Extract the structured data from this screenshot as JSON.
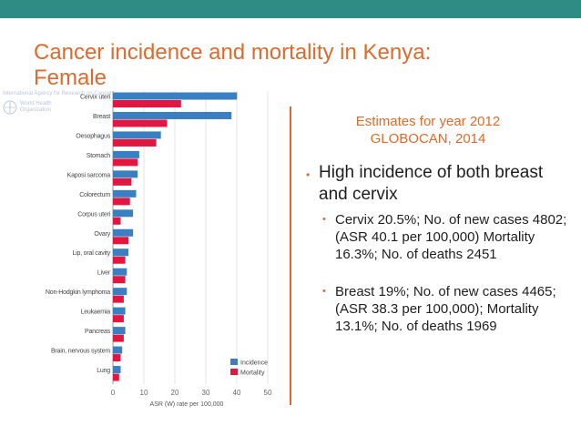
{
  "slide": {
    "title": "Cancer incidence and mortality in Kenya: Female",
    "estimates_line1": "Estimates for year 2012",
    "estimates_line2": "GLOBOCAN, 2014",
    "bullet_main": "High incidence of both breast and cervix",
    "bullet_cervix": "Cervix  20.5%; No. of new cases 4802; (ASR 40.1 per 100,000) Mortality 16.3%; No. of deaths 2451",
    "bullet_breast": "Breast 19%; No. of new cases 4465; (ASR 38.3 per 100,000); Mortality 13.1%; No. of deaths 1969"
  },
  "who_logo": {
    "line1": "International Agency for Research on Cancer",
    "line2": "World Health",
    "line3": "Organization"
  },
  "colors": {
    "topbar": "#2e8c84",
    "title": "#e06a2b",
    "incidence": "#3a7fc1",
    "mortality": "#e2163f"
  },
  "chart_data": {
    "type": "bar",
    "orientation": "horizontal",
    "categories": [
      "Cervix uteri",
      "Breast",
      "Oesophagus",
      "Stomach",
      "Kaposi sarcoma",
      "Colorectum",
      "Corpus uteri",
      "Ovary",
      "Lip, oral cavity",
      "Liver",
      "Non-Hodgkin lymphoma",
      "Leukaemia",
      "Pancreas",
      "Brain, nervous system",
      "Lung"
    ],
    "series": [
      {
        "name": "Incidence",
        "values": [
          40.1,
          38.3,
          15.5,
          8.5,
          8.0,
          7.5,
          6.5,
          6.5,
          5.0,
          4.5,
          4.5,
          4.0,
          4.0,
          3.0,
          2.5
        ]
      },
      {
        "name": "Mortality",
        "values": [
          22.0,
          17.5,
          14.0,
          8.0,
          6.0,
          5.5,
          2.5,
          5.0,
          4.0,
          4.0,
          3.5,
          3.5,
          3.5,
          2.5,
          2.0
        ]
      }
    ],
    "xlim": [
      0,
      50
    ],
    "xticks": [
      "0",
      "10",
      "20",
      "30",
      "40",
      "50"
    ],
    "xlabel": "ASR (W) rate per 100,000",
    "legend_position": "bottom-right"
  }
}
